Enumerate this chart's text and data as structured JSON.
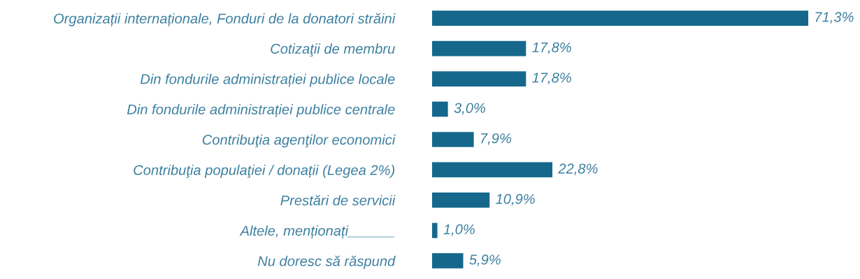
{
  "chart_data": {
    "type": "bar",
    "orientation": "horizontal",
    "categories": [
      "Organizații internaționale, Fonduri de la donatori străini",
      "Cotizaţii de membru",
      "Din fondurile administrației publice locale",
      "Din fondurile administrației publice centrale",
      "Contribuţia agenţilor economici",
      "Contribuţia populaţiei / donații (Legea 2%)",
      "Prestări de servicii",
      "Altele, menționați______",
      "Nu doresc să răspund"
    ],
    "values": [
      71.3,
      17.8,
      17.8,
      3.0,
      7.9,
      22.8,
      10.9,
      1.0,
      5.9
    ],
    "color": "#15688c",
    "value_labels": [
      "71,3%",
      "17,8%",
      "17,8%",
      "3,0%",
      "7,9%",
      "22,8%",
      "10,9%",
      "1,0%",
      "5,9%"
    ],
    "tick_labels": "y"
  }
}
